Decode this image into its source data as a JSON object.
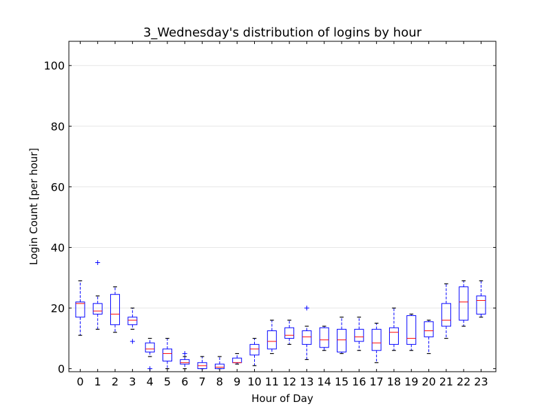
{
  "chart_data": {
    "type": "box",
    "title": "3_Wednesday's distribution of logins by hour",
    "xlabel": "Hour of Day",
    "ylabel": "Login Count [per hour]",
    "ylim": [
      -1,
      108
    ],
    "yticks": [
      0,
      20,
      40,
      60,
      80,
      100
    ],
    "grid": "horizontal",
    "colors": {
      "box": "#0000ff",
      "median": "#ff0000",
      "whisker": "#0000ff",
      "flier": "#0000ff",
      "grid": "#e6e6e6"
    },
    "boxes": [
      {
        "label": "0",
        "whislo": 11,
        "q1": 17,
        "med": 21.5,
        "q3": 22,
        "whishi": 29,
        "fliers": []
      },
      {
        "label": "1",
        "whislo": 13,
        "q1": 18,
        "med": 19,
        "q3": 21.5,
        "whishi": 24,
        "fliers": [
          35
        ]
      },
      {
        "label": "2",
        "whislo": 12,
        "q1": 14.5,
        "med": 18,
        "q3": 24.5,
        "whishi": 27,
        "fliers": []
      },
      {
        "label": "3",
        "whislo": 13,
        "q1": 14.5,
        "med": 16,
        "q3": 17,
        "whishi": 20,
        "fliers": [
          9
        ]
      },
      {
        "label": "4",
        "whislo": 4,
        "q1": 5.5,
        "med": 6.5,
        "q3": 8.5,
        "whishi": 10,
        "fliers": [
          0
        ]
      },
      {
        "label": "5",
        "whislo": 0,
        "q1": 2.5,
        "med": 5,
        "q3": 6.5,
        "whishi": 10,
        "fliers": []
      },
      {
        "label": "6",
        "whislo": 0,
        "q1": 1.5,
        "med": 2,
        "q3": 3,
        "whishi": 4,
        "fliers": [
          5
        ]
      },
      {
        "label": "7",
        "whislo": 0,
        "q1": 0,
        "med": 1,
        "q3": 2,
        "whishi": 4,
        "fliers": []
      },
      {
        "label": "8",
        "whislo": 0,
        "q1": 0,
        "med": 0.5,
        "q3": 1.5,
        "whishi": 4,
        "fliers": []
      },
      {
        "label": "9",
        "whislo": 1.5,
        "q1": 2,
        "med": 2,
        "q3": 3.5,
        "whishi": 5,
        "fliers": []
      },
      {
        "label": "10",
        "whislo": 1,
        "q1": 4.5,
        "med": 6.5,
        "q3": 8,
        "whishi": 10,
        "fliers": []
      },
      {
        "label": "11",
        "whislo": 5,
        "q1": 6.5,
        "med": 9,
        "q3": 12.5,
        "whishi": 16,
        "fliers": []
      },
      {
        "label": "12",
        "whislo": 8,
        "q1": 10,
        "med": 11,
        "q3": 13.5,
        "whishi": 16,
        "fliers": []
      },
      {
        "label": "13",
        "whislo": 3,
        "q1": 8,
        "med": 10.5,
        "q3": 12.5,
        "whishi": 14,
        "fliers": [
          20
        ]
      },
      {
        "label": "14",
        "whislo": 6,
        "q1": 7,
        "med": 9.5,
        "q3": 13.5,
        "whishi": 14,
        "fliers": []
      },
      {
        "label": "15",
        "whislo": 5,
        "q1": 5.5,
        "med": 9.5,
        "q3": 13,
        "whishi": 17,
        "fliers": []
      },
      {
        "label": "16",
        "whislo": 6,
        "q1": 9,
        "med": 10.5,
        "q3": 13,
        "whishi": 17,
        "fliers": []
      },
      {
        "label": "17",
        "whislo": 2,
        "q1": 6,
        "med": 8.5,
        "q3": 13,
        "whishi": 15,
        "fliers": []
      },
      {
        "label": "18",
        "whislo": 6,
        "q1": 8,
        "med": 12,
        "q3": 13.5,
        "whishi": 20,
        "fliers": []
      },
      {
        "label": "19",
        "whislo": 6,
        "q1": 8,
        "med": 10,
        "q3": 17.5,
        "whishi": 18,
        "fliers": []
      },
      {
        "label": "20",
        "whislo": 5,
        "q1": 10.5,
        "med": 12.5,
        "q3": 15.5,
        "whishi": 16,
        "fliers": []
      },
      {
        "label": "21",
        "whislo": 10,
        "q1": 14,
        "med": 16,
        "q3": 21.5,
        "whishi": 28,
        "fliers": []
      },
      {
        "label": "22",
        "whislo": 14,
        "q1": 16,
        "med": 22,
        "q3": 27,
        "whishi": 29,
        "fliers": []
      },
      {
        "label": "23",
        "whislo": 17,
        "q1": 18,
        "med": 22.5,
        "q3": 24,
        "whishi": 29,
        "fliers": []
      }
    ]
  }
}
